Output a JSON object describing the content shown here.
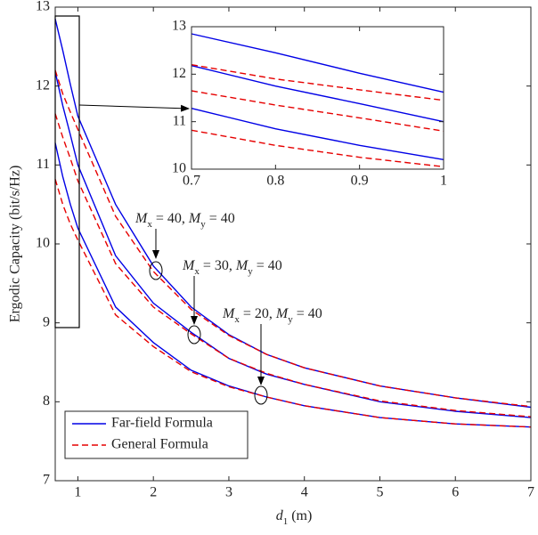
{
  "chart_data": [
    {
      "type": "line",
      "x": [
        0.7,
        0.8,
        0.9,
        1,
        1.5,
        2,
        2.5,
        3,
        3.5,
        4,
        5,
        6,
        7
      ],
      "x_label": [
        {
          "t": "d"
        },
        {
          "t": "1",
          "sub": true
        },
        {
          "t": " (m)"
        }
      ],
      "y_label": "Ergodic Capacity (bit/s/Hz)",
      "xlim": [
        0.7,
        7
      ],
      "ylim": [
        7,
        13
      ],
      "xticks": [
        1,
        2,
        3,
        4,
        5,
        6,
        7
      ],
      "yticks": [
        7,
        8,
        9,
        10,
        11,
        12,
        13
      ],
      "legend": "southwest",
      "series": [
        {
          "name": "Far-field Formula",
          "color": "#0000e6",
          "dashed": false,
          "lines": [
            {
              "values": [
                12.85,
                12.45,
                12.02,
                11.62,
                10.5,
                9.72,
                9.2,
                8.85,
                8.6,
                8.43,
                8.2,
                8.05,
                7.93
              ]
            },
            {
              "values": [
                12.18,
                11.75,
                11.38,
                11.0,
                9.85,
                9.25,
                8.88,
                8.55,
                8.35,
                8.22,
                8.0,
                7.88,
                7.8
              ]
            },
            {
              "values": [
                11.28,
                10.85,
                10.5,
                10.2,
                9.2,
                8.75,
                8.4,
                8.2,
                8.06,
                7.95,
                7.8,
                7.72,
                7.68
              ]
            }
          ]
        },
        {
          "name": "General Formula",
          "color": "#e60000",
          "dashed": true,
          "lines": [
            {
              "values": [
                12.2,
                11.9,
                11.67,
                11.45,
                10.35,
                9.65,
                9.17,
                8.84,
                8.6,
                8.43,
                8.2,
                8.05,
                7.94
              ]
            },
            {
              "values": [
                11.65,
                11.35,
                11.08,
                10.8,
                9.75,
                9.2,
                8.86,
                8.55,
                8.36,
                8.22,
                8.01,
                7.89,
                7.81
              ]
            },
            {
              "values": [
                10.82,
                10.5,
                10.25,
                10.05,
                9.1,
                8.7,
                8.38,
                8.19,
                8.06,
                7.95,
                7.8,
                7.72,
                7.68
              ]
            }
          ]
        }
      ],
      "annotations": [
        [
          {
            "t": "M"
          },
          {
            "t": "x",
            "sub": true
          },
          {
            "t": " = 40, "
          },
          {
            "t": "M"
          },
          {
            "t": "y",
            "sub": true
          },
          {
            "t": " = 40"
          }
        ],
        [
          {
            "t": "M"
          },
          {
            "t": "x",
            "sub": true
          },
          {
            "t": " = 30, "
          },
          {
            "t": "M"
          },
          {
            "t": "y",
            "sub": true
          },
          {
            "t": " = 40"
          }
        ],
        [
          {
            "t": "M"
          },
          {
            "t": "x",
            "sub": true
          },
          {
            "t": " = 20, "
          },
          {
            "t": "M"
          },
          {
            "t": "y",
            "sub": true
          },
          {
            "t": " = 40"
          }
        ]
      ]
    },
    {
      "type": "line",
      "x": [
        0.7,
        0.8,
        0.9,
        1
      ],
      "xlim": [
        0.7,
        1
      ],
      "ylim": [
        10,
        13
      ],
      "xticks": [
        0.7,
        0.8,
        0.9,
        1
      ],
      "yticks": [
        10,
        11,
        12,
        13
      ],
      "series": [
        {
          "color": "#0000e6",
          "dashed": false,
          "lines": [
            {
              "values": [
                12.85,
                12.45,
                12.02,
                11.62
              ]
            },
            {
              "values": [
                12.18,
                11.75,
                11.38,
                11.0
              ]
            },
            {
              "values": [
                11.28,
                10.85,
                10.5,
                10.2
              ]
            }
          ]
        },
        {
          "color": "#e60000",
          "dashed": true,
          "lines": [
            {
              "values": [
                12.2,
                11.9,
                11.67,
                11.45
              ]
            },
            {
              "values": [
                11.65,
                11.35,
                11.08,
                10.8
              ]
            },
            {
              "values": [
                10.82,
                10.5,
                10.25,
                10.05
              ]
            }
          ]
        }
      ]
    }
  ]
}
